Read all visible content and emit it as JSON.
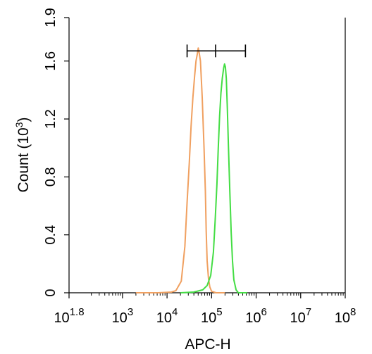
{
  "chart_data": {
    "type": "line",
    "title": "",
    "xlabel": "APC-H",
    "ylabel": "Count",
    "ylabel_unit_base": "(10",
    "ylabel_unit_exp": "3",
    "ylabel_unit_close": ")",
    "x_scale": "log10",
    "xlim": [
      1.8,
      8
    ],
    "ylim": [
      0,
      1.9
    ],
    "x_ticks": [
      {
        "value": 1.8,
        "base": "10",
        "exp": "1.8"
      },
      {
        "value": 3,
        "base": "10",
        "exp": "3"
      },
      {
        "value": 4,
        "base": "10",
        "exp": "4"
      },
      {
        "value": 5,
        "base": "10",
        "exp": "5"
      },
      {
        "value": 6,
        "base": "10",
        "exp": "6"
      },
      {
        "value": 7,
        "base": "10",
        "exp": "7"
      },
      {
        "value": 8,
        "base": "10",
        "exp": "8"
      }
    ],
    "y_ticks": [
      {
        "value": 0,
        "label": "0"
      },
      {
        "value": 0.4,
        "label": "0.4"
      },
      {
        "value": 0.8,
        "label": "0.8"
      },
      {
        "value": 1.2,
        "label": "1.2"
      },
      {
        "value": 1.6,
        "label": "1.6"
      },
      {
        "value": 1.9,
        "label": "1.9"
      }
    ],
    "grid": false,
    "legend": "none",
    "series": [
      {
        "color": "#f0a060",
        "x": [
          3.3,
          3.8,
          4.1,
          4.2,
          4.32,
          4.4,
          4.45,
          4.5,
          4.54,
          4.58,
          4.62,
          4.65,
          4.68,
          4.7,
          4.72,
          4.75,
          4.79,
          4.83,
          4.86,
          4.88,
          4.9,
          4.93,
          4.96,
          5.0,
          5.1,
          5.3
        ],
        "y": [
          0,
          0,
          0.005,
          0.015,
          0.08,
          0.32,
          0.62,
          0.9,
          1.15,
          1.35,
          1.5,
          1.6,
          1.65,
          1.69,
          1.66,
          1.6,
          1.35,
          1.0,
          0.7,
          0.42,
          0.22,
          0.1,
          0.04,
          0.01,
          0,
          0
        ]
      },
      {
        "color": "#44dd44",
        "x": [
          4.3,
          4.6,
          4.8,
          4.9,
          4.98,
          5.04,
          5.08,
          5.12,
          5.15,
          5.18,
          5.21,
          5.24,
          5.27,
          5.29,
          5.31,
          5.33,
          5.35,
          5.38,
          5.41,
          5.44,
          5.47,
          5.5,
          5.55,
          5.6,
          5.8
        ],
        "y": [
          0,
          0.005,
          0.02,
          0.05,
          0.12,
          0.28,
          0.5,
          0.75,
          1.0,
          1.22,
          1.38,
          1.48,
          1.55,
          1.58,
          1.56,
          1.48,
          1.3,
          1.0,
          0.7,
          0.42,
          0.22,
          0.09,
          0.02,
          0,
          0
        ]
      }
    ],
    "gate_bar": {
      "x_start": 4.45,
      "x_mid": 5.09,
      "x_end": 5.76,
      "y": 1.67
    }
  }
}
